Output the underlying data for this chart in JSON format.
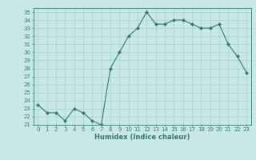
{
  "x": [
    0,
    1,
    2,
    3,
    4,
    5,
    6,
    7,
    8,
    9,
    10,
    11,
    12,
    13,
    14,
    15,
    16,
    17,
    18,
    19,
    20,
    21,
    22,
    23
  ],
  "y": [
    23.5,
    22.5,
    22.5,
    21.5,
    23.0,
    22.5,
    21.5,
    21.0,
    28.0,
    30.0,
    32.0,
    33.0,
    35.0,
    33.5,
    33.5,
    34.0,
    34.0,
    33.5,
    33.0,
    33.0,
    33.5,
    31.0,
    29.5,
    27.5
  ],
  "xlim": [
    -0.5,
    23.5
  ],
  "ylim": [
    21,
    35.5
  ],
  "yticks": [
    21,
    22,
    23,
    24,
    25,
    26,
    27,
    28,
    29,
    30,
    31,
    32,
    33,
    34,
    35
  ],
  "xticks": [
    0,
    1,
    2,
    3,
    4,
    5,
    6,
    7,
    8,
    9,
    10,
    11,
    12,
    13,
    14,
    15,
    16,
    17,
    18,
    19,
    20,
    21,
    22,
    23
  ],
  "xlabel": "Humidex (Indice chaleur)",
  "line_color": "#2e7d6e",
  "marker": "D",
  "marker_size": 2,
  "bg_color": "#c8e8e8",
  "grid_color": "#aacece",
  "tick_fontsize": 5,
  "xlabel_fontsize": 6
}
